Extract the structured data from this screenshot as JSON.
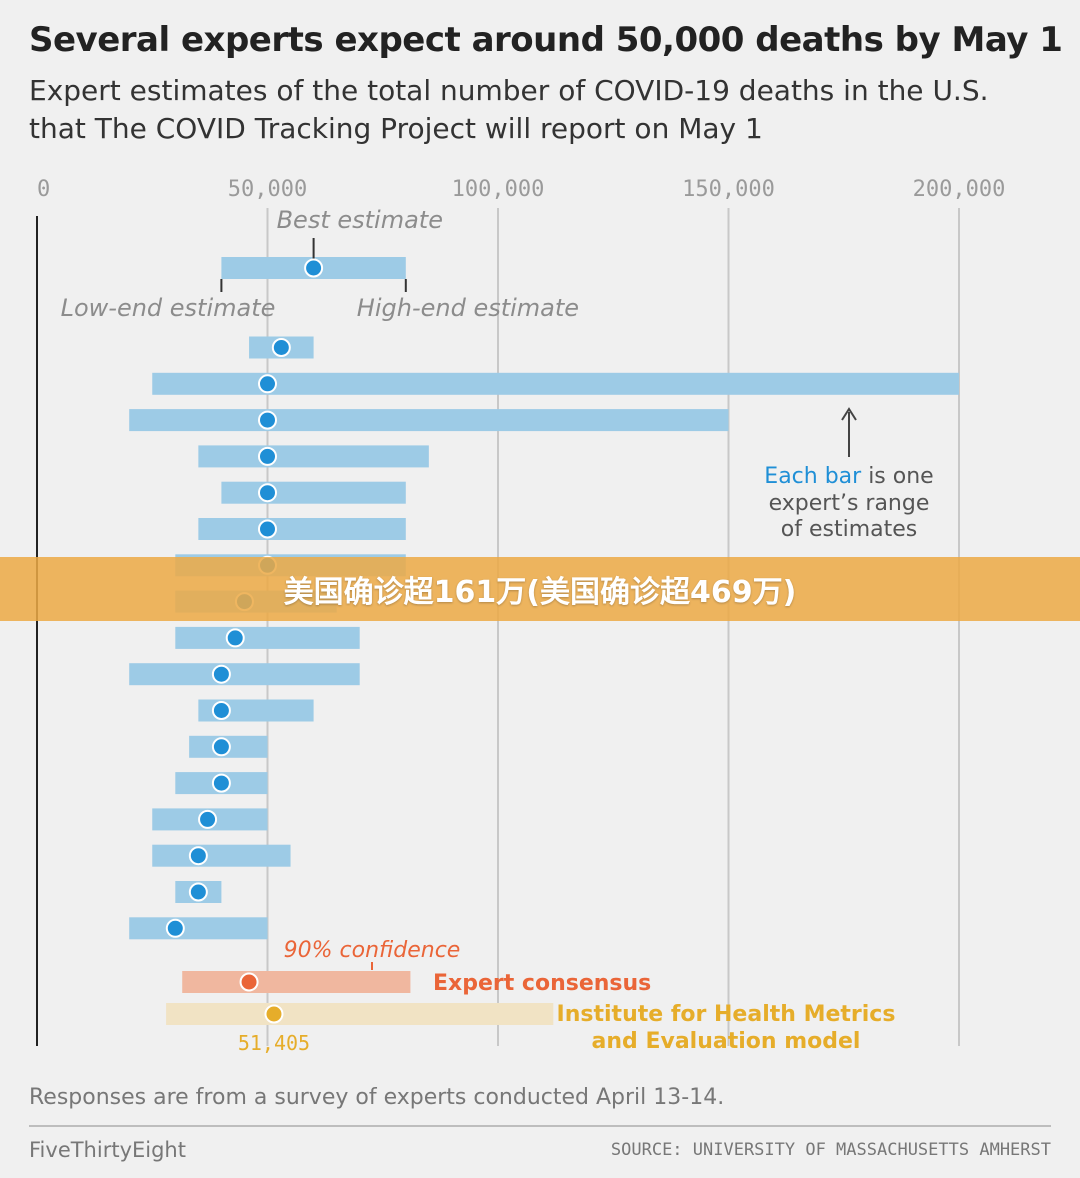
{
  "title": "Several experts expect around 50,000 deaths by May 1",
  "subtitle": "Expert estimates of the total number of COVID-19 deaths in the U.S. that The COVID Tracking Project will report on May 1",
  "banner_text": "美国确诊超161万(美国确诊超469万)",
  "footnote": "Responses are from a survey of experts conducted April 13-14.",
  "brand": "FiveThirtyEight",
  "source": "SOURCE: UNIVERSITY OF MASSACHUSETTS AMHERST",
  "colors": {
    "expert_bar": "#9dcbe6",
    "expert_dot": "#1f8fd6",
    "consensus_bar": "#f0b79f",
    "consensus_dot": "#ea6538",
    "ihme_bar": "#f1e3c4",
    "ihme_dot": "#e6ad2a",
    "axis": "#222222",
    "grid": "#c8c8c8"
  },
  "chart_data": {
    "type": "range-dot",
    "xlim": [
      0,
      200000
    ],
    "x_ticks": [
      {
        "value": 0,
        "label": "0"
      },
      {
        "value": 50000,
        "label": "50,000"
      },
      {
        "value": 100000,
        "label": "100,000"
      },
      {
        "value": 150000,
        "label": "150,000"
      },
      {
        "value": 200000,
        "label": "200,000"
      }
    ],
    "legend_example": {
      "low": 40000,
      "best": 60000,
      "high": 80000,
      "best_label": "Best estimate",
      "low_label": "Low-end estimate",
      "high_label": "High-end estimate"
    },
    "annotation": {
      "highlight": "Each bar",
      "rest": "is one",
      "line2": "expert’s range",
      "line3": "of estimates"
    },
    "experts": [
      {
        "low": 46000,
        "best": 53000,
        "high": 60000
      },
      {
        "low": 25000,
        "best": 50000,
        "high": 200000
      },
      {
        "low": 20000,
        "best": 50000,
        "high": 150000
      },
      {
        "low": 35000,
        "best": 50000,
        "high": 85000
      },
      {
        "low": 40000,
        "best": 50000,
        "high": 80000
      },
      {
        "low": 35000,
        "best": 50000,
        "high": 80000
      },
      {
        "low": 30000,
        "best": 50000,
        "high": 80000
      },
      {
        "low": 30000,
        "best": 45000,
        "high": 65000
      },
      {
        "low": 30000,
        "best": 43000,
        "high": 70000
      },
      {
        "low": 20000,
        "best": 40000,
        "high": 70000
      },
      {
        "low": 35000,
        "best": 40000,
        "high": 60000
      },
      {
        "low": 33000,
        "best": 40000,
        "high": 50000
      },
      {
        "low": 30000,
        "best": 40000,
        "high": 50000
      },
      {
        "low": 25000,
        "best": 37000,
        "high": 50000
      },
      {
        "low": 25000,
        "best": 35000,
        "high": 55000
      },
      {
        "low": 30000,
        "best": 35000,
        "high": 40000
      },
      {
        "low": 20000,
        "best": 30000,
        "high": 50000
      }
    ],
    "consensus": {
      "low": 31500,
      "best": 46000,
      "high": 81000,
      "label": "Expert consensus",
      "ci_label": "90% confidence"
    },
    "ihme": {
      "low": 28000,
      "best": 51405,
      "high": 112000,
      "label_line1": "Institute for Health Metrics",
      "label_line2": "and Evaluation model",
      "value_label": "51,405"
    }
  }
}
